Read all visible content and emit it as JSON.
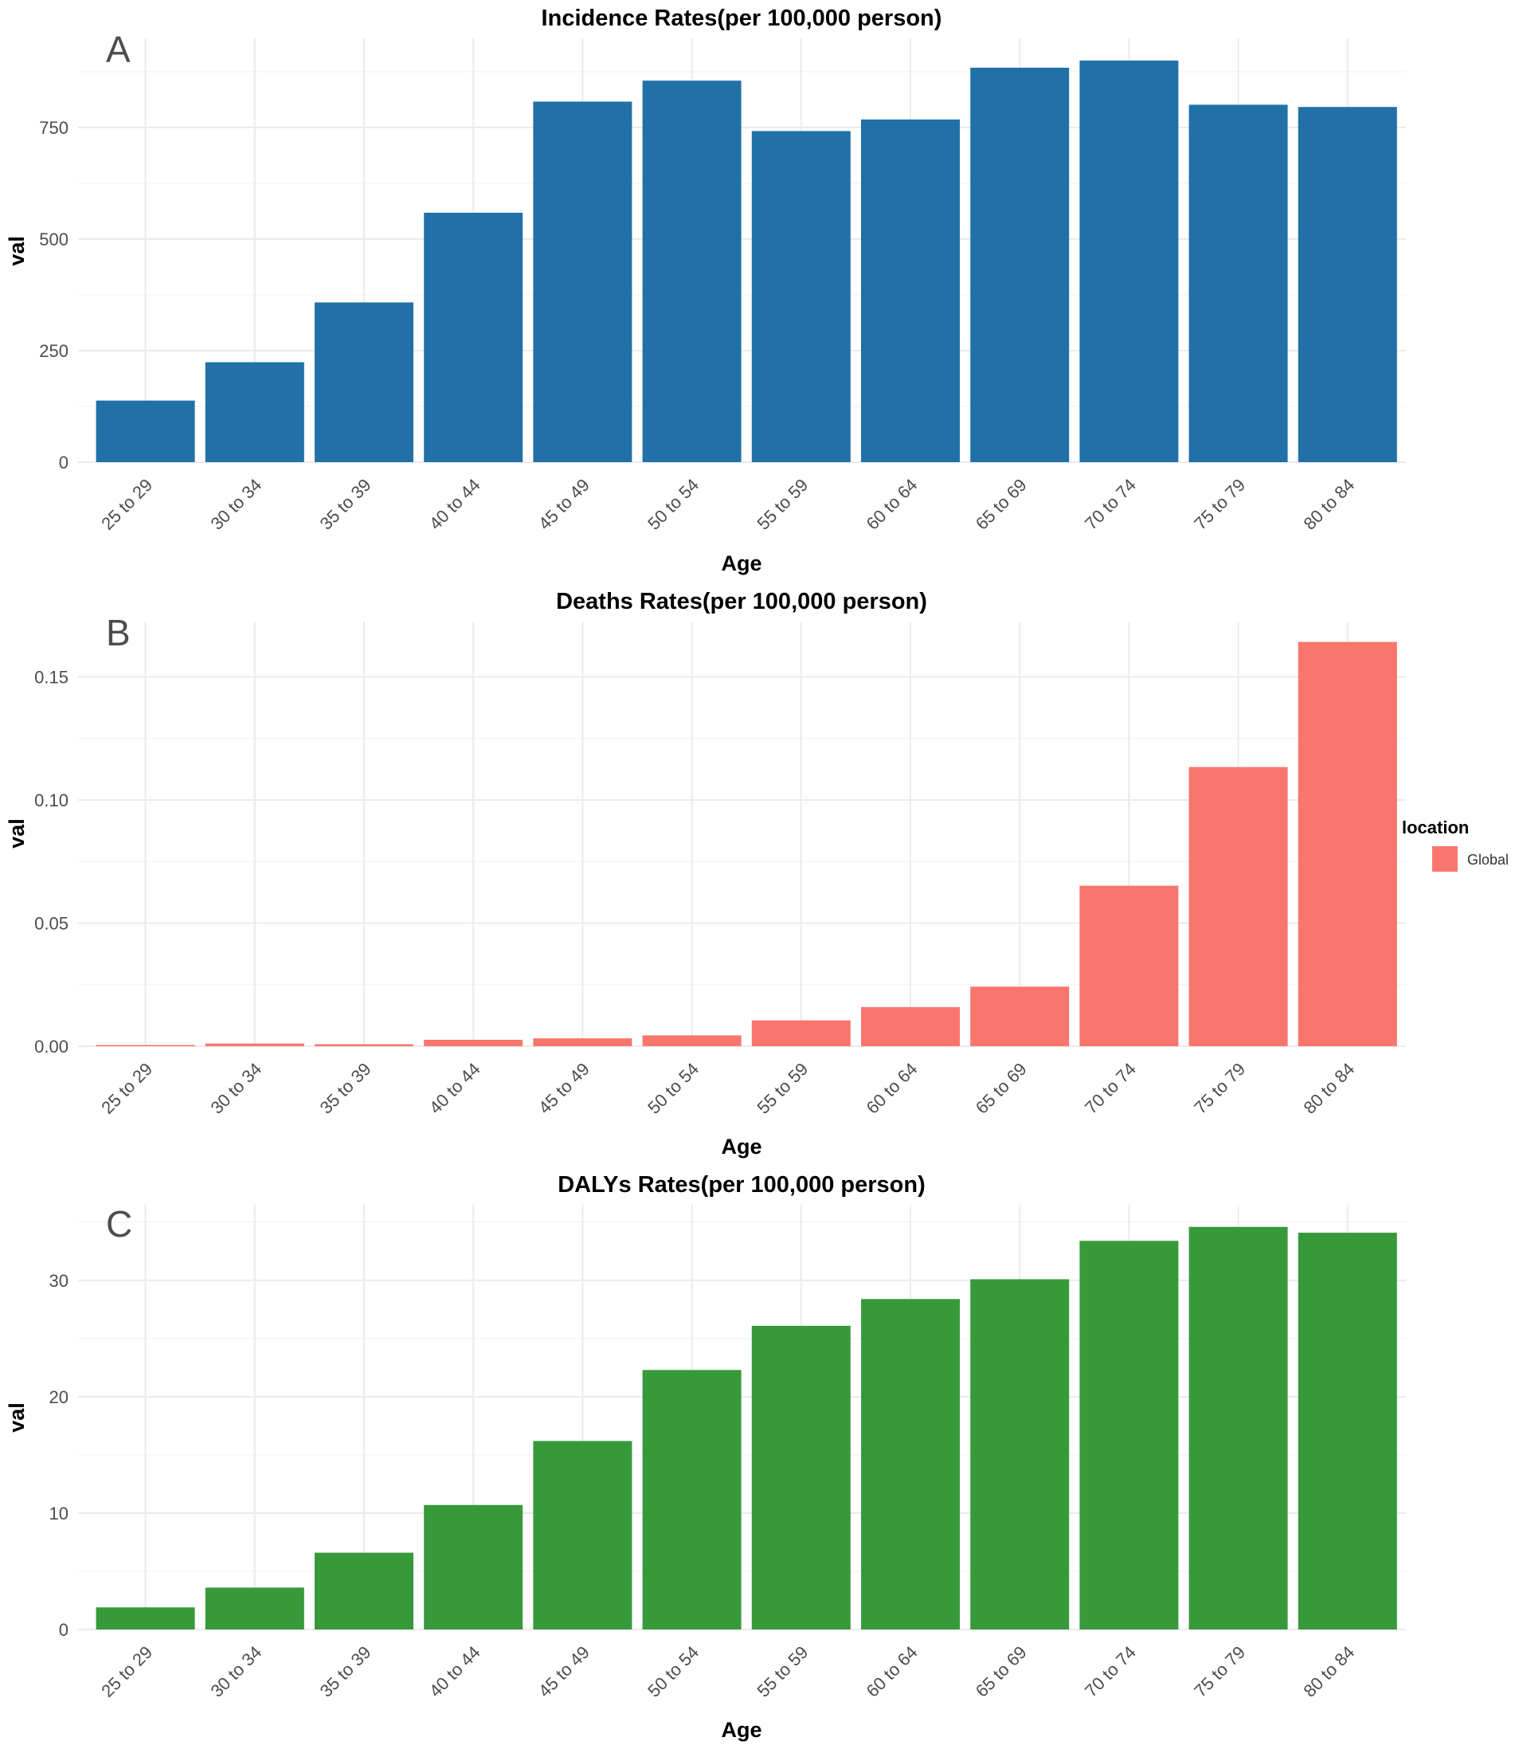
{
  "chart_data": [
    {
      "type": "bar",
      "panel": "A",
      "title": "Incidence Rates(per 100,000 person)",
      "xlabel": "Age",
      "ylabel": "val",
      "categories": [
        "25 to 29",
        "30 to 34",
        "35 to 39",
        "40 to 44",
        "45 to 49",
        "50 to 54",
        "55 to 59",
        "60 to 64",
        "65 to 69",
        "70 to 74",
        "75 to 79",
        "80 to 84"
      ],
      "values": [
        138,
        224,
        358,
        559,
        808,
        855,
        742,
        768,
        884,
        900,
        801,
        796
      ],
      "ylim": [
        0,
        950
      ],
      "yticks": [
        0,
        250,
        500,
        750
      ],
      "ytick_labels": [
        "0",
        "250",
        "500",
        "750"
      ],
      "color": "#2171A8",
      "legend": null
    },
    {
      "type": "bar",
      "panel": "B",
      "title": "Deaths Rates(per 100,000 person)",
      "xlabel": "Age",
      "ylabel": "val",
      "categories": [
        "25 to 29",
        "30 to 34",
        "35 to 39",
        "40 to 44",
        "45 to 49",
        "50 to 54",
        "55 to 59",
        "60 to 64",
        "65 to 69",
        "70 to 74",
        "75 to 79",
        "80 to 84"
      ],
      "values": [
        0.0005,
        0.0011,
        0.0008,
        0.0026,
        0.0032,
        0.0044,
        0.0105,
        0.0159,
        0.0242,
        0.0652,
        0.1134,
        0.1642
      ],
      "ylim": [
        0,
        0.1725
      ],
      "yticks": [
        0,
        0.05,
        0.1,
        0.15
      ],
      "ytick_labels": [
        "0.00",
        "0.05",
        "0.10",
        "0.15"
      ],
      "color": "#F8766D",
      "legend": {
        "title": "location",
        "entries": [
          "Global"
        ],
        "position": "right"
      }
    },
    {
      "type": "bar",
      "panel": "C",
      "title": "DALYs Rates(per 100,000 person)",
      "xlabel": "Age",
      "ylabel": "val",
      "categories": [
        "25 to 29",
        "30 to 34",
        "35 to 39",
        "40 to 44",
        "45 to 49",
        "50 to 54",
        "55 to 59",
        "60 to 64",
        "65 to 69",
        "70 to 74",
        "75 to 79",
        "80 to 84"
      ],
      "values": [
        1.9,
        3.6,
        6.6,
        10.7,
        16.2,
        22.3,
        26.1,
        28.4,
        30.1,
        33.4,
        34.6,
        34.1
      ],
      "ylim": [
        0,
        36.5
      ],
      "yticks": [
        0,
        10,
        20,
        30
      ],
      "ytick_labels": [
        "0",
        "10",
        "20",
        "30"
      ],
      "color": "#379A3A",
      "legend": null
    }
  ]
}
